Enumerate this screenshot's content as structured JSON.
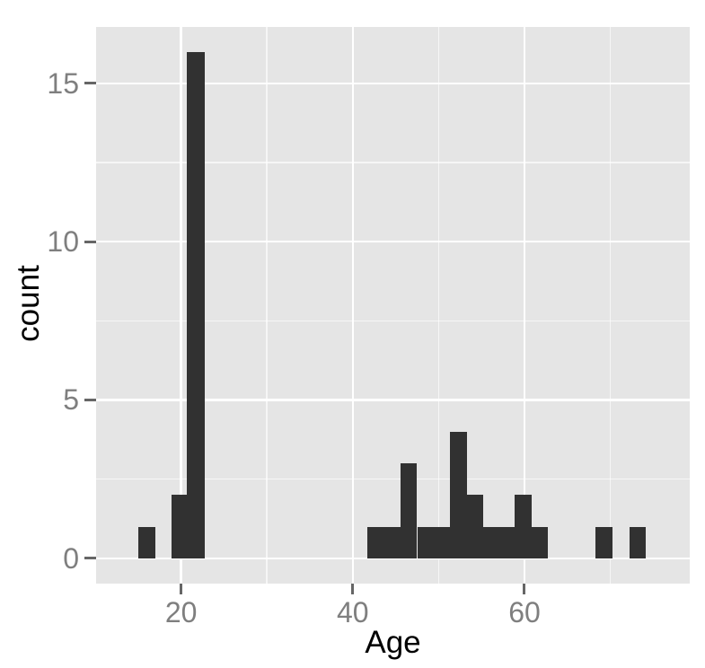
{
  "chart_data": {
    "type": "bar",
    "subtype": "histogram",
    "title": "",
    "xlabel": "Age",
    "ylabel": "count",
    "x_domain": [
      10.1,
      79.25
    ],
    "y_domain": [
      -0.8,
      16.78
    ],
    "x_major_ticks": [
      {
        "value": 20,
        "label": "20"
      },
      {
        "value": 40,
        "label": "40"
      },
      {
        "value": 60,
        "label": "60"
      }
    ],
    "x_minor_ticks": [
      30,
      50,
      70
    ],
    "y_major_ticks": [
      {
        "value": 0,
        "label": "0"
      },
      {
        "value": 5,
        "label": "5"
      },
      {
        "value": 10,
        "label": "10"
      },
      {
        "value": 15,
        "label": "15"
      }
    ],
    "y_minor_ticks": [
      2.5,
      7.5,
      12.5
    ],
    "grid": "on",
    "legend": "none",
    "bins": [
      {
        "x0": 15.0,
        "x1": 17.0,
        "count": 1
      },
      {
        "x0": 18.9,
        "x1": 20.7,
        "count": 2
      },
      {
        "x0": 20.7,
        "x1": 22.8,
        "count": 16
      },
      {
        "x0": 41.7,
        "x1": 43.7,
        "count": 1
      },
      {
        "x0": 43.7,
        "x1": 45.6,
        "count": 1
      },
      {
        "x0": 45.6,
        "x1": 47.5,
        "count": 3
      },
      {
        "x0": 47.5,
        "x1": 49.5,
        "count": 1
      },
      {
        "x0": 49.5,
        "x1": 51.3,
        "count": 1
      },
      {
        "x0": 51.3,
        "x1": 53.3,
        "count": 4
      },
      {
        "x0": 53.3,
        "x1": 55.2,
        "count": 2
      },
      {
        "x0": 55.2,
        "x1": 57.2,
        "count": 1
      },
      {
        "x0": 57.2,
        "x1": 58.8,
        "count": 1
      },
      {
        "x0": 58.8,
        "x1": 60.8,
        "count": 2
      },
      {
        "x0": 60.8,
        "x1": 62.7,
        "count": 1
      },
      {
        "x0": 68.3,
        "x1": 70.3,
        "count": 1
      },
      {
        "x0": 72.2,
        "x1": 74.1,
        "count": 1
      }
    ],
    "colors": {
      "bar": "#313131",
      "panel": "#E5E5E5",
      "grid_major": "#FFFFFF",
      "grid_minor": "#FFFFFF",
      "tick": "#666666",
      "tick_label": "#7F7F7F",
      "axis_title": "#000000",
      "background": "#FFFFFF"
    }
  }
}
